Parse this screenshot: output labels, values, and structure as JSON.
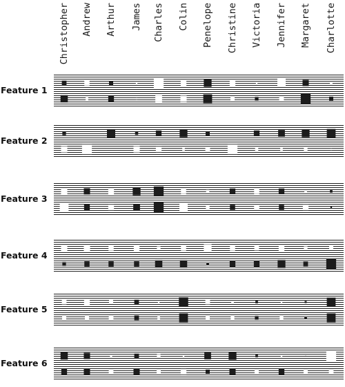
{
  "people": [
    "Christopher",
    "Andrew",
    "Arthur",
    "James",
    "Charles",
    "Colin",
    "Penelope",
    "Christine",
    "Victoria",
    "Jennifer",
    "Margaret",
    "Charlotte"
  ],
  "colors": {
    "positive": "#1c1c1c",
    "negative": "#ffffff",
    "lines": "#1e1e1e",
    "background": "#ffffff"
  },
  "features": [
    {
      "label": "Feature 1",
      "rows": [
        [
          0.45,
          -0.5,
          0.4,
          -0.15,
          -0.95,
          -0.55,
          0.75,
          -0.55,
          -0.15,
          -0.8,
          0.6,
          -0.25
        ],
        [
          0.7,
          -0.25,
          0.55,
          -0.15,
          -0.65,
          -0.6,
          0.85,
          -0.4,
          0.35,
          -0.45,
          0.95,
          0.4
        ]
      ]
    },
    {
      "label": "Feature 2",
      "rows": [
        [
          0.35,
          0.0,
          0.8,
          0.3,
          0.55,
          0.75,
          0.4,
          0.0,
          0.55,
          0.65,
          0.75,
          0.85
        ],
        [
          -0.6,
          -0.95,
          -0.1,
          -0.6,
          -0.55,
          -0.25,
          -0.45,
          -0.95,
          -0.3,
          -0.25,
          -0.35,
          -0.15
        ]
      ]
    },
    {
      "label": "Feature 3",
      "rows": [
        [
          -0.6,
          0.6,
          -0.55,
          0.75,
          0.95,
          -0.5,
          -0.3,
          0.55,
          -0.5,
          0.55,
          -0.25,
          0.25
        ],
        [
          -0.85,
          0.55,
          -0.55,
          0.65,
          0.95,
          -0.8,
          -0.35,
          0.5,
          -0.5,
          0.5,
          -0.55,
          0.15
        ]
      ]
    },
    {
      "label": "Feature 4",
      "rows": [
        [
          -0.6,
          -0.6,
          -0.5,
          -0.55,
          -0.35,
          -0.5,
          -0.75,
          -0.5,
          -0.45,
          -0.55,
          -0.35,
          -0.4
        ],
        [
          0.35,
          0.5,
          0.5,
          0.5,
          0.7,
          0.7,
          0.25,
          0.55,
          0.55,
          0.75,
          0.45,
          0.95
        ]
      ]
    },
    {
      "label": "Feature 5",
      "rows": [
        [
          -0.45,
          -0.55,
          -0.4,
          0.45,
          -0.15,
          0.9,
          -0.45,
          -0.25,
          0.25,
          -0.15,
          0.2,
          0.85
        ],
        [
          -0.4,
          -0.4,
          -0.45,
          0.45,
          -0.25,
          0.85,
          -0.4,
          -0.35,
          0.35,
          -0.35,
          0.25,
          0.85
        ]
      ]
    },
    {
      "label": "Feature 6",
      "rows": [
        [
          0.7,
          0.6,
          -0.2,
          0.45,
          -0.35,
          -0.15,
          0.65,
          0.75,
          0.25,
          -0.15,
          0.05,
          -0.95
        ],
        [
          0.55,
          0.6,
          -0.45,
          0.6,
          -0.4,
          -0.55,
          0.4,
          0.6,
          -0.4,
          0.55,
          -0.4,
          -0.45
        ]
      ]
    }
  ]
}
